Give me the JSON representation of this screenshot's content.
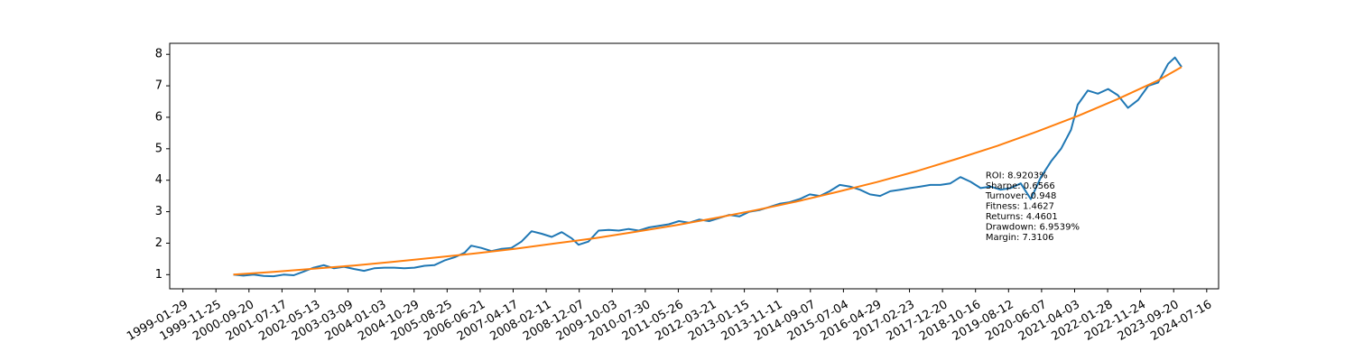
{
  "chart_data": {
    "type": "line",
    "title": "",
    "xlabel": "",
    "ylabel": "",
    "x_ticks": [
      "1999-01-29",
      "1999-11-25",
      "2000-09-20",
      "2001-07-17",
      "2002-05-13",
      "2003-03-09",
      "2004-01-03",
      "2004-10-29",
      "2005-08-25",
      "2006-06-21",
      "2007-04-17",
      "2008-02-11",
      "2008-12-07",
      "2009-10-03",
      "2010-07-30",
      "2011-05-26",
      "2012-03-21",
      "2013-01-15",
      "2013-11-11",
      "2014-09-07",
      "2015-07-04",
      "2016-04-29",
      "2017-02-23",
      "2017-12-20",
      "2018-10-16",
      "2019-08-12",
      "2020-06-07",
      "2021-04-03",
      "2022-01-28",
      "2022-11-24",
      "2023-09-20",
      "2024-07-16"
    ],
    "y_ticks": [
      1,
      2,
      3,
      4,
      5,
      6,
      7,
      8
    ],
    "xlim": [
      "1998-10-01",
      "2024-11-01"
    ],
    "ylim": [
      0.55,
      8.35
    ],
    "grid": false,
    "series": [
      {
        "color": "#1f77b4",
        "points": [
          [
            "2000-05-01",
            1.0
          ],
          [
            "2000-08-01",
            0.97
          ],
          [
            "2000-11-01",
            1.0
          ],
          [
            "2001-02-01",
            0.96
          ],
          [
            "2001-05-01",
            0.95
          ],
          [
            "2001-08-01",
            1.0
          ],
          [
            "2001-11-01",
            0.98
          ],
          [
            "2002-02-01",
            1.1
          ],
          [
            "2002-05-01",
            1.22
          ],
          [
            "2002-08-01",
            1.3
          ],
          [
            "2002-11-01",
            1.2
          ],
          [
            "2003-02-01",
            1.25
          ],
          [
            "2003-05-01",
            1.18
          ],
          [
            "2003-08-01",
            1.12
          ],
          [
            "2003-11-01",
            1.2
          ],
          [
            "2004-02-01",
            1.22
          ],
          [
            "2004-05-01",
            1.22
          ],
          [
            "2004-08-01",
            1.2
          ],
          [
            "2004-11-01",
            1.22
          ],
          [
            "2005-02-01",
            1.28
          ],
          [
            "2005-05-01",
            1.3
          ],
          [
            "2005-08-01",
            1.45
          ],
          [
            "2005-11-01",
            1.55
          ],
          [
            "2006-02-01",
            1.7
          ],
          [
            "2006-04-01",
            1.92
          ],
          [
            "2006-07-01",
            1.85
          ],
          [
            "2006-10-01",
            1.75
          ],
          [
            "2007-01-01",
            1.82
          ],
          [
            "2007-04-01",
            1.85
          ],
          [
            "2007-07-01",
            2.05
          ],
          [
            "2007-10-01",
            2.38
          ],
          [
            "2008-01-01",
            2.3
          ],
          [
            "2008-04-01",
            2.2
          ],
          [
            "2008-07-01",
            2.35
          ],
          [
            "2008-10-01",
            2.15
          ],
          [
            "2008-12-01",
            1.95
          ],
          [
            "2009-03-01",
            2.05
          ],
          [
            "2009-06-01",
            2.4
          ],
          [
            "2009-09-01",
            2.42
          ],
          [
            "2009-12-01",
            2.4
          ],
          [
            "2010-03-01",
            2.45
          ],
          [
            "2010-06-01",
            2.4
          ],
          [
            "2010-09-01",
            2.5
          ],
          [
            "2010-12-01",
            2.55
          ],
          [
            "2011-03-01",
            2.6
          ],
          [
            "2011-06-01",
            2.7
          ],
          [
            "2011-09-01",
            2.65
          ],
          [
            "2011-12-01",
            2.75
          ],
          [
            "2012-03-01",
            2.7
          ],
          [
            "2012-06-01",
            2.8
          ],
          [
            "2012-09-01",
            2.9
          ],
          [
            "2012-12-01",
            2.85
          ],
          [
            "2013-03-01",
            3.0
          ],
          [
            "2013-06-01",
            3.05
          ],
          [
            "2013-09-01",
            3.15
          ],
          [
            "2013-12-01",
            3.25
          ],
          [
            "2014-03-01",
            3.3
          ],
          [
            "2014-06-01",
            3.4
          ],
          [
            "2014-09-01",
            3.55
          ],
          [
            "2014-12-01",
            3.5
          ],
          [
            "2015-03-01",
            3.65
          ],
          [
            "2015-06-01",
            3.85
          ],
          [
            "2015-09-01",
            3.8
          ],
          [
            "2015-12-01",
            3.7
          ],
          [
            "2016-03-01",
            3.55
          ],
          [
            "2016-06-01",
            3.5
          ],
          [
            "2016-09-01",
            3.65
          ],
          [
            "2016-12-01",
            3.7
          ],
          [
            "2017-03-01",
            3.75
          ],
          [
            "2017-06-01",
            3.8
          ],
          [
            "2017-09-01",
            3.85
          ],
          [
            "2017-12-01",
            3.85
          ],
          [
            "2018-03-01",
            3.9
          ],
          [
            "2018-06-01",
            4.1
          ],
          [
            "2018-09-01",
            3.95
          ],
          [
            "2018-12-01",
            3.75
          ],
          [
            "2019-03-01",
            3.8
          ],
          [
            "2019-06-01",
            3.7
          ],
          [
            "2019-09-01",
            3.75
          ],
          [
            "2019-12-01",
            3.9
          ],
          [
            "2020-03-01",
            3.4
          ],
          [
            "2020-06-01",
            4.1
          ],
          [
            "2020-09-01",
            4.6
          ],
          [
            "2020-12-01",
            5.0
          ],
          [
            "2021-03-01",
            5.6
          ],
          [
            "2021-05-01",
            6.4
          ],
          [
            "2021-08-01",
            6.85
          ],
          [
            "2021-11-01",
            6.75
          ],
          [
            "2022-02-01",
            6.9
          ],
          [
            "2022-05-01",
            6.7
          ],
          [
            "2022-08-01",
            6.3
          ],
          [
            "2022-11-01",
            6.55
          ],
          [
            "2023-02-01",
            7.0
          ],
          [
            "2023-05-01",
            7.1
          ],
          [
            "2023-08-01",
            7.7
          ],
          [
            "2023-10-01",
            7.9
          ],
          [
            "2023-12-01",
            7.6
          ]
        ]
      },
      {
        "color": "#ff7f0e",
        "points": [
          [
            "2000-05-01",
            1.0
          ],
          [
            "2001-05-01",
            1.09
          ],
          [
            "2002-05-01",
            1.19
          ],
          [
            "2003-05-01",
            1.29
          ],
          [
            "2004-05-01",
            1.41
          ],
          [
            "2005-05-01",
            1.54
          ],
          [
            "2006-05-01",
            1.67
          ],
          [
            "2007-05-01",
            1.82
          ],
          [
            "2008-05-01",
            1.99
          ],
          [
            "2009-05-01",
            2.16
          ],
          [
            "2010-05-01",
            2.36
          ],
          [
            "2011-05-01",
            2.57
          ],
          [
            "2012-05-01",
            2.8
          ],
          [
            "2013-05-01",
            3.05
          ],
          [
            "2014-05-01",
            3.32
          ],
          [
            "2015-05-01",
            3.62
          ],
          [
            "2016-05-01",
            3.94
          ],
          [
            "2017-05-01",
            4.29
          ],
          [
            "2018-05-01",
            4.68
          ],
          [
            "2019-05-01",
            5.09
          ],
          [
            "2020-05-01",
            5.55
          ],
          [
            "2021-05-01",
            6.04
          ],
          [
            "2022-05-01",
            6.58
          ],
          [
            "2023-05-01",
            7.17
          ],
          [
            "2023-12-01",
            7.6
          ]
        ]
      }
    ],
    "annotation": {
      "lines": [
        "ROI: 8.9203%",
        "Sharpe: 0.6566",
        "Turnover: 0.948",
        "Fitness: 1.4627",
        "Returns: 4.4601",
        "Drawdown: 6.9539%",
        "Margin: 7.3106"
      ],
      "anchor_date": "2019-01-15",
      "anchor_value": 4.25
    }
  }
}
